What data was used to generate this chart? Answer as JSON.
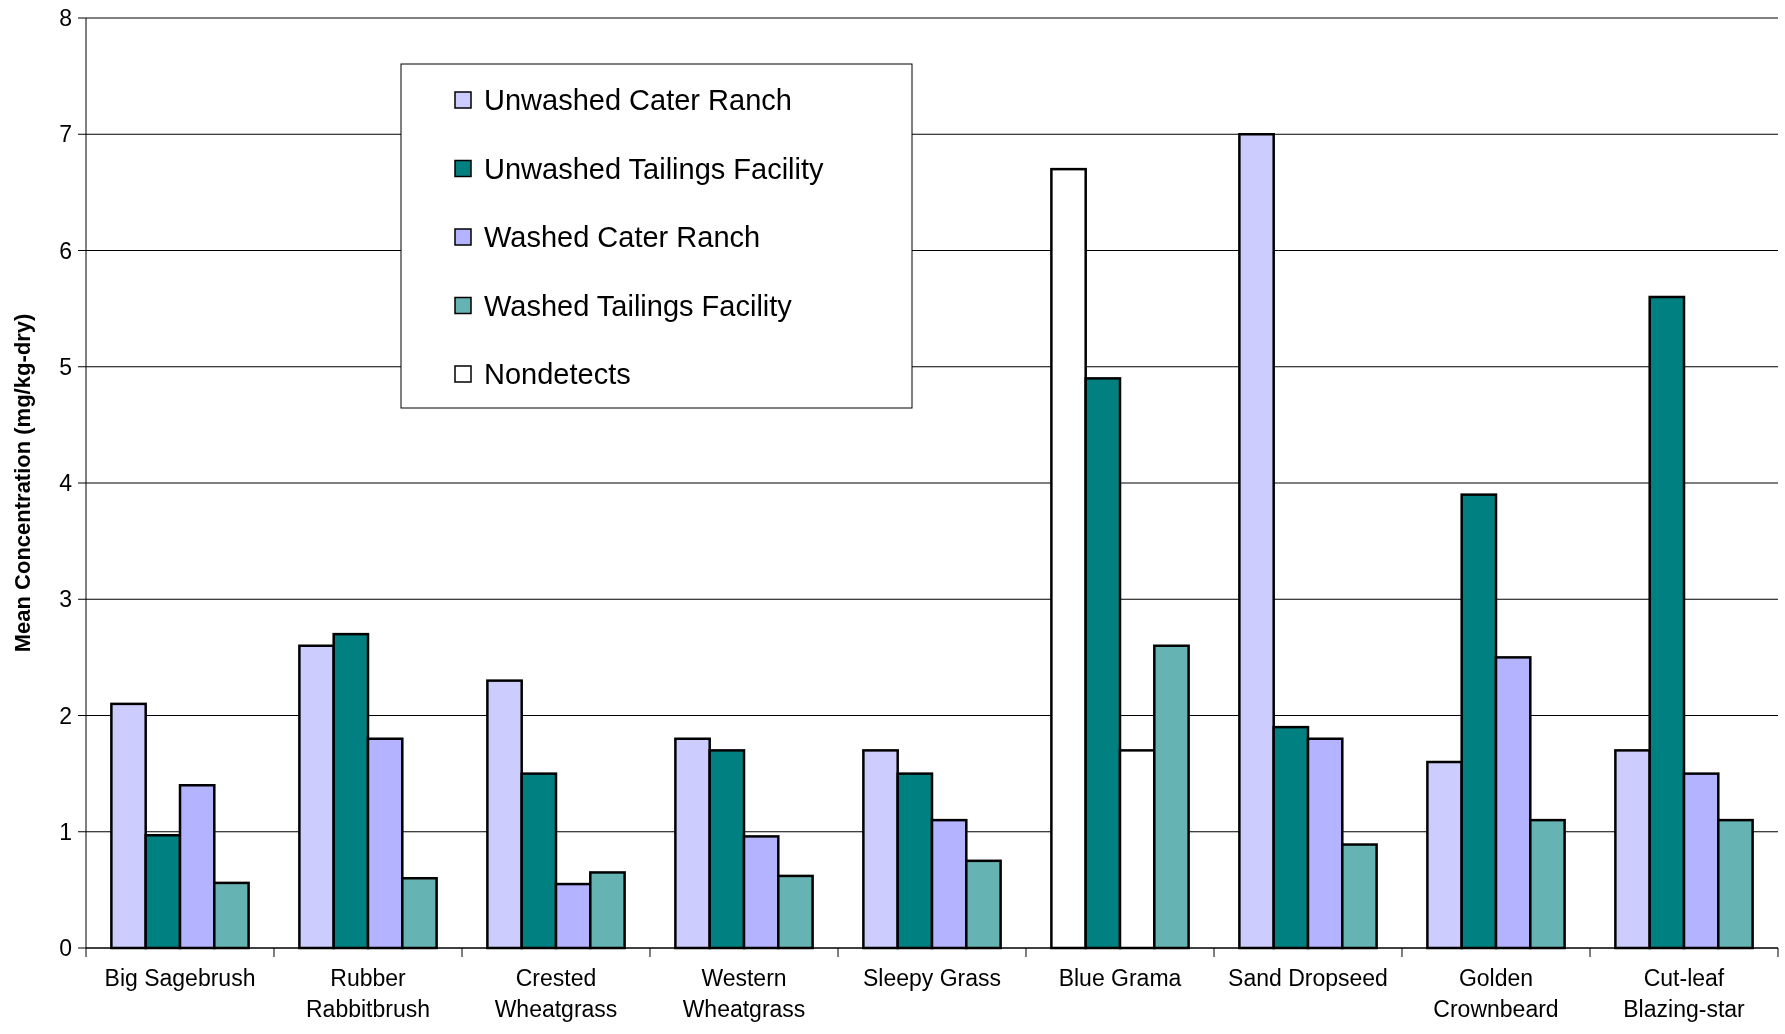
{
  "chart_data": {
    "type": "bar",
    "ylabel": "Mean Concentration (mg/kg-dry)",
    "categories": [
      "Big Sagebrush",
      "Rubber\nRabbitbrush",
      "Crested\nWheatgrass",
      "Western\nWheatgrass",
      "Sleepy Grass",
      "Blue Grama",
      "Sand Dropseed",
      "Golden\nCrownbeard",
      "Cut-leaf\nBlazing-star"
    ],
    "series": [
      {
        "name": "Unwashed Cater Ranch",
        "color": "#ccccff",
        "colors": [
          "#ccccff",
          "#ccccff",
          "#ccccff",
          "#ccccff",
          "#ccccff",
          "#ffffff",
          "#ccccff",
          "#ccccff",
          "#ccccff"
        ],
        "values": [
          2.1,
          2.6,
          2.3,
          1.8,
          1.7,
          6.7,
          7.0,
          1.6,
          1.7
        ]
      },
      {
        "name": "Unwashed Tailings Facility",
        "color": "#008080",
        "values": [
          0.97,
          2.7,
          1.5,
          1.7,
          1.5,
          4.9,
          1.9,
          3.9,
          5.6
        ]
      },
      {
        "name": "Washed Cater Ranch",
        "color": "#b3b3ff",
        "colors": [
          "#b3b3ff",
          "#b3b3ff",
          "#b3b3ff",
          "#b3b3ff",
          "#b3b3ff",
          "#ffffff",
          "#b3b3ff",
          "#b3b3ff",
          "#b3b3ff"
        ],
        "values": [
          1.4,
          1.8,
          0.55,
          0.96,
          1.1,
          1.7,
          1.8,
          2.5,
          1.5
        ]
      },
      {
        "name": "Washed Tailings Facility",
        "color": "#66b3b3",
        "values": [
          0.56,
          0.6,
          0.65,
          0.62,
          0.75,
          2.6,
          0.89,
          1.1,
          1.1
        ]
      },
      {
        "name": "Nondetects",
        "color": "#ffffff",
        "values": [
          null,
          null,
          null,
          null,
          null,
          null,
          null,
          null,
          null
        ]
      }
    ],
    "ylim": [
      0,
      8
    ],
    "yticks": [
      0,
      1,
      2,
      3,
      4,
      5,
      6,
      7,
      8
    ],
    "grid": "y",
    "legend": "top left"
  }
}
